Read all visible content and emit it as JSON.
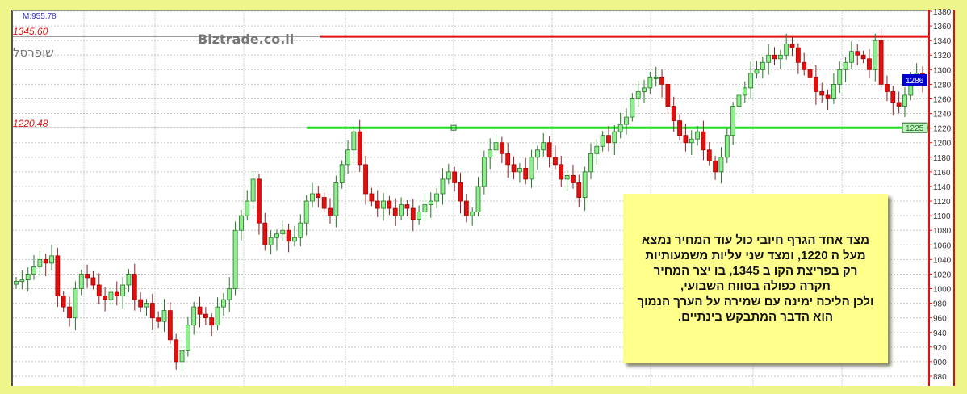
{
  "chart_data": {
    "type": "candlestick",
    "ylim": [
      880,
      1380
    ],
    "y_ticks": [
      880,
      900,
      920,
      940,
      960,
      980,
      1000,
      1020,
      1040,
      1060,
      1080,
      1100,
      1120,
      1140,
      1160,
      1180,
      1200,
      1220,
      1240,
      1260,
      1280,
      1300,
      1320,
      1340,
      1360,
      1380
    ],
    "grid": true,
    "close": [
      1010,
      1012,
      1020,
      1030,
      1040,
      1035,
      1045,
      990,
      975,
      960,
      1000,
      1020,
      1015,
      1005,
      990,
      985,
      995,
      990,
      1005,
      1020,
      985,
      975,
      980,
      960,
      955,
      970,
      930,
      900,
      915,
      950,
      975,
      965,
      960,
      950,
      975,
      985,
      1000,
      1080,
      1100,
      1120,
      1150,
      1090,
      1060,
      1070,
      1075,
      1080,
      1065,
      1070,
      1090,
      1120,
      1130,
      1125,
      1110,
      1100,
      1145,
      1170,
      1190,
      1215,
      1170,
      1130,
      1120,
      1110,
      1120,
      1110,
      1100,
      1115,
      1110,
      1095,
      1105,
      1115,
      1120,
      1130,
      1150,
      1160,
      1145,
      1120,
      1100,
      1105,
      1140,
      1180,
      1190,
      1200,
      1185,
      1170,
      1160,
      1165,
      1150,
      1180,
      1190,
      1200,
      1180,
      1170,
      1150,
      1155,
      1145,
      1125,
      1160,
      1185,
      1195,
      1210,
      1200,
      1215,
      1225,
      1235,
      1260,
      1270,
      1275,
      1290,
      1290,
      1280,
      1250,
      1230,
      1210,
      1200,
      1205,
      1215,
      1190,
      1175,
      1160,
      1180,
      1210,
      1250,
      1265,
      1275,
      1295,
      1300,
      1310,
      1320,
      1315,
      1320,
      1335,
      1330,
      1310,
      1300,
      1290,
      1270,
      1265,
      1260,
      1280,
      1300,
      1310,
      1325,
      1320,
      1315,
      1300,
      1340,
      1280,
      1270,
      1255,
      1250,
      1265,
      1290,
      1295,
      1286
    ],
    "resistance": {
      "value": 1345.6,
      "label": "1345.60",
      "color": "#e01010"
    },
    "support": {
      "value": 1220.48,
      "label": "1220.48",
      "color": "#22e022"
    },
    "last_price_tag": {
      "value": 1286,
      "label": "1286",
      "color": "#0000cc"
    },
    "support_tag": {
      "label": "1225",
      "value": 1225
    },
    "up_color": "#90ee90",
    "down_color": "#e01010"
  },
  "header": {
    "m_value": "M:955.78",
    "symbol": "שופרסל",
    "watermark": "Biztrade.co.il"
  },
  "note": {
    "text": "מצד אחד הגרף חיובי כול עוד המחיר נמצא\nמעל ה 1220, ומצד שני  עליות משמעותיות\nרק בפריצת הקו ב 1345,  בו יצר המחיר\nתקרה כפולה  בטווח  השבועי,\nולכן הליכה ימינה עם שמירה על הערך הנמוך\nהוא  הדבר המתבקש בינתיים."
  }
}
